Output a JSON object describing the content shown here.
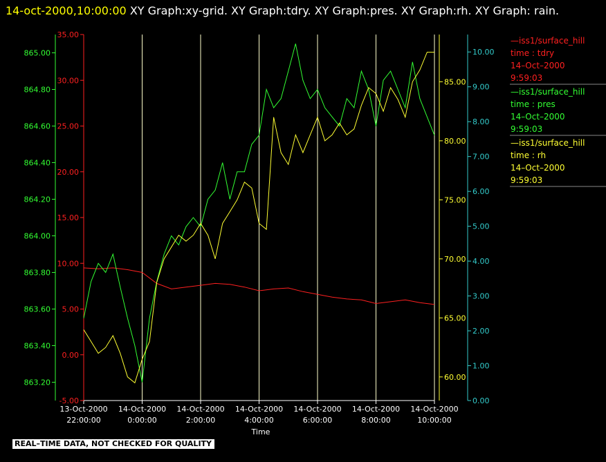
{
  "header": {
    "timestamp": "14-oct-2000,10:00:00",
    "titles": "  XY Graph:xy-grid.  XY Graph:tdry.  XY Graph:pres.  XY Graph:rh.  XY Graph: rain."
  },
  "footer": {
    "quality_note": "REAL–TIME DATA, NOT CHECKED FOR QUALITY"
  },
  "colors": {
    "tdry": "#ff2020",
    "pres": "#33ff33",
    "rh": "#ffff33",
    "rain": "#33cccc",
    "grid": "#ffffcc",
    "background": "#000000"
  },
  "chart_data": {
    "type": "line",
    "xlabel": "Time",
    "x_ticks": [
      {
        "t": -2,
        "line1": "13-Oct-2000",
        "line2": "22:00:00"
      },
      {
        "t": 0,
        "line1": "14-Oct-2000",
        "line2": "0:00:00"
      },
      {
        "t": 2,
        "line1": "14-Oct-2000",
        "line2": "2:00:00"
      },
      {
        "t": 4,
        "line1": "14-Oct-2000",
        "line2": "4:00:00"
      },
      {
        "t": 6,
        "line1": "14-Oct-2000",
        "line2": "6:00:00"
      },
      {
        "t": 8,
        "line1": "14-Oct-2000",
        "line2": "8:00:00"
      },
      {
        "t": 10,
        "line1": "14-Oct-2000",
        "line2": "10:00:00"
      }
    ],
    "xlim": [
      -2,
      10
    ],
    "axes": {
      "tdry": {
        "ylim": [
          -5,
          35
        ],
        "ticks": [
          "-5.00",
          "0.00",
          "5.00",
          "10.00",
          "15.00",
          "20.00",
          "25.00",
          "30.00",
          "35.00"
        ]
      },
      "pres": {
        "ylim": [
          863.1,
          865.1
        ],
        "ticks": [
          "863.20",
          "863.40",
          "863.60",
          "863.80",
          "864.00",
          "864.20",
          "864.40",
          "864.60",
          "864.80",
          "865.00"
        ]
      },
      "rh": {
        "ylim": [
          58,
          89
        ],
        "ticks": [
          "60.00",
          "65.00",
          "70.00",
          "75.00",
          "80.00",
          "85.00"
        ]
      },
      "rain": {
        "ylim": [
          0,
          10.5
        ],
        "ticks": [
          "0.00",
          "1.00",
          "2.00",
          "3.00",
          "4.00",
          "5.00",
          "6.00",
          "7.00",
          "8.00",
          "9.00",
          "10.00"
        ]
      }
    },
    "series": [
      {
        "name": "tdry",
        "x": [
          -2,
          -1.5,
          -1,
          -0.5,
          0,
          0.5,
          1,
          1.5,
          2,
          2.5,
          3,
          3.5,
          4,
          4.5,
          5,
          5.5,
          6,
          6.5,
          7,
          7.5,
          8,
          8.5,
          9,
          9.5,
          10
        ],
        "y": [
          9.5,
          9.4,
          9.5,
          9.3,
          9.0,
          7.8,
          7.2,
          7.4,
          7.6,
          7.8,
          7.7,
          7.4,
          7.0,
          7.2,
          7.3,
          6.9,
          6.6,
          6.3,
          6.1,
          6.0,
          5.6,
          5.8,
          6.0,
          5.7,
          5.5
        ]
      },
      {
        "name": "pres",
        "x": [
          -2,
          -1.75,
          -1.5,
          -1.25,
          -1,
          -0.75,
          -0.5,
          -0.25,
          0,
          0.25,
          0.5,
          0.75,
          1,
          1.25,
          1.5,
          1.75,
          2,
          2.25,
          2.5,
          2.75,
          3,
          3.25,
          3.5,
          3.75,
          4,
          4.25,
          4.5,
          4.75,
          5,
          5.25,
          5.5,
          5.75,
          6,
          6.25,
          6.5,
          6.75,
          7,
          7.25,
          7.5,
          7.75,
          8,
          8.25,
          8.5,
          8.75,
          9,
          9.25,
          9.5,
          9.75,
          10
        ],
        "y": [
          863.55,
          863.75,
          863.85,
          863.8,
          863.9,
          863.72,
          863.55,
          863.4,
          863.2,
          863.55,
          863.75,
          863.9,
          864.0,
          863.95,
          864.05,
          864.1,
          864.05,
          864.2,
          864.25,
          864.4,
          864.2,
          864.35,
          864.35,
          864.5,
          864.55,
          864.8,
          864.7,
          864.75,
          864.9,
          865.05,
          864.85,
          864.75,
          864.8,
          864.7,
          864.65,
          864.6,
          864.75,
          864.7,
          864.9,
          864.8,
          864.6,
          864.85,
          864.9,
          864.8,
          864.7,
          864.95,
          864.75,
          864.65,
          864.55
        ]
      },
      {
        "name": "rh",
        "x": [
          -2,
          -1.75,
          -1.5,
          -1.25,
          -1,
          -0.75,
          -0.5,
          -0.25,
          0,
          0.25,
          0.5,
          0.75,
          1,
          1.25,
          1.5,
          1.75,
          2,
          2.25,
          2.5,
          2.75,
          3,
          3.25,
          3.5,
          3.75,
          4,
          4.25,
          4.5,
          4.75,
          5,
          5.25,
          5.5,
          5.75,
          6,
          6.25,
          6.5,
          6.75,
          7,
          7.25,
          7.5,
          7.75,
          8,
          8.25,
          8.5,
          8.75,
          9,
          9.25,
          9.5,
          9.75,
          10
        ],
        "y": [
          64,
          63,
          62,
          62.5,
          63.5,
          62,
          60,
          59.5,
          61.5,
          63,
          68,
          70,
          71,
          72,
          71.5,
          72,
          73,
          72,
          70,
          73,
          74,
          75,
          76.5,
          76,
          73,
          72.5,
          82,
          79,
          78,
          80.5,
          79,
          80.5,
          82,
          80,
          80.5,
          81.5,
          80.5,
          81,
          83,
          84.5,
          84,
          82.5,
          84.5,
          83.5,
          82,
          85,
          86,
          87.5,
          87.5
        ]
      }
    ]
  },
  "legend": [
    {
      "series": "tdry",
      "station": "—iss1/surface_hill",
      "label": "time : tdry",
      "date": "14–Oct–2000",
      "time": "9:59:03"
    },
    {
      "series": "pres",
      "station": "—iss1/surface_hill",
      "label": "time : pres",
      "date": "14–Oct–2000",
      "time": "9:59:03"
    },
    {
      "series": "rh",
      "station": "—iss1/surface_hill",
      "label": "time : rh",
      "date": "14–Oct–2000",
      "time": "9:59:03"
    }
  ]
}
